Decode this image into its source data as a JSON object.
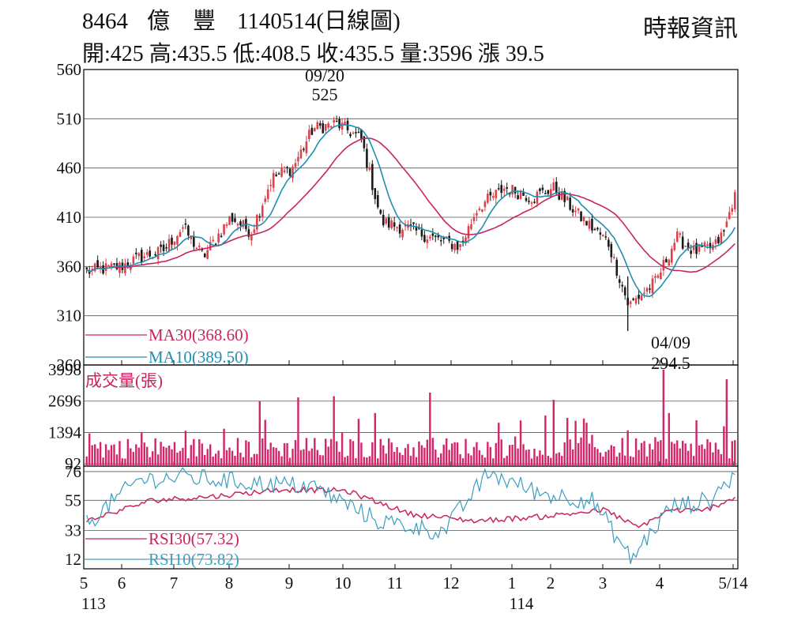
{
  "header": {
    "code": "8464",
    "name": "億　豐",
    "date_title": "1140514(日線圖)",
    "source": "時報資訊",
    "ohlc_line": "開:425 高:435.5 低:408.5 收:435.5 量:3596 漲 39.5"
  },
  "colors": {
    "up": "#e0404a",
    "down": "#1a1a1a",
    "ma30": "#c8245e",
    "ma10": "#1f8fb0",
    "volume": "#d4246a",
    "rsi30": "#c8245e",
    "rsi10": "#3a9fc0",
    "grid": "#555555"
  },
  "annotations": {
    "high_date": "09/20",
    "high_value": "525",
    "low_date": "04/09",
    "low_value": "294.5"
  },
  "chart_data": [
    {
      "type": "candlestick",
      "title": "",
      "ylim": [
        260,
        560
      ],
      "y_ticks": [
        "560",
        "510",
        "460",
        "410",
        "360",
        "310",
        "260"
      ],
      "x_ticks": [
        "5",
        "6",
        "7",
        "8",
        "9",
        "10",
        "11",
        "12",
        "1",
        "2",
        "3",
        "4",
        "5/14"
      ],
      "x_year_labels": [
        "113",
        "114"
      ],
      "grid": true,
      "legend": [
        "MA30(368.60)",
        "MA10(389.50)"
      ],
      "close_anchors": [
        {
          "x": 0.0,
          "close": 355
        },
        {
          "x": 0.05,
          "close": 360
        },
        {
          "x": 0.08,
          "close": 370
        },
        {
          "x": 0.11,
          "close": 375
        },
        {
          "x": 0.14,
          "close": 400
        },
        {
          "x": 0.17,
          "close": 370
        },
        {
          "x": 0.21,
          "close": 410
        },
        {
          "x": 0.24,
          "close": 395
        },
        {
          "x": 0.27,
          "close": 450
        },
        {
          "x": 0.3,
          "close": 460
        },
        {
          "x": 0.33,
          "close": 500
        },
        {
          "x": 0.365,
          "close": 505
        },
        {
          "x": 0.4,
          "close": 490
        },
        {
          "x": 0.43,
          "close": 405
        },
        {
          "x": 0.47,
          "close": 398
        },
        {
          "x": 0.5,
          "close": 390
        },
        {
          "x": 0.545,
          "close": 380
        },
        {
          "x": 0.57,
          "close": 420
        },
        {
          "x": 0.61,
          "close": 440
        },
        {
          "x": 0.65,
          "close": 430
        },
        {
          "x": 0.68,
          "close": 440
        },
        {
          "x": 0.72,
          "close": 410
        },
        {
          "x": 0.76,
          "close": 385
        },
        {
          "x": 0.79,
          "close": 320
        },
        {
          "x": 0.83,
          "close": 345
        },
        {
          "x": 0.86,
          "close": 390
        },
        {
          "x": 0.885,
          "close": 375
        },
        {
          "x": 0.915,
          "close": 380
        },
        {
          "x": 0.93,
          "close": 396
        },
        {
          "x": 0.945,
          "close": 435.5
        }
      ]
    },
    {
      "type": "bar",
      "title": "成交量(張)",
      "ylim": [
        0,
        3998
      ],
      "y_ticks": [
        "3998",
        "2696",
        "1394",
        "92"
      ],
      "grid": true,
      "spikes": [
        {
          "i": 5,
          "v": 1000
        },
        {
          "i": 20,
          "v": 1400
        },
        {
          "i": 50,
          "v": 1550
        },
        {
          "i": 63,
          "v": 2700
        },
        {
          "i": 77,
          "v": 2850
        },
        {
          "i": 90,
          "v": 2900
        },
        {
          "i": 105,
          "v": 2200
        },
        {
          "i": 125,
          "v": 3050
        },
        {
          "i": 150,
          "v": 1800
        },
        {
          "i": 167,
          "v": 2100
        },
        {
          "i": 170,
          "v": 2750
        },
        {
          "i": 175,
          "v": 2000
        },
        {
          "i": 210,
          "v": 3998
        },
        {
          "i": 212,
          "v": 2200
        },
        {
          "i": 222,
          "v": 1900
        },
        {
          "i": 233,
          "v": 3600
        }
      ]
    },
    {
      "type": "line",
      "title": "",
      "ylim": [
        5,
        80
      ],
      "y_ticks": [
        "76",
        "55",
        "33",
        "12"
      ],
      "grid": true,
      "legend": [
        "RSI30(57.32)",
        "RSI10(73.82)"
      ],
      "rsi30_anchors": [
        {
          "x": 0.0,
          "y": 40
        },
        {
          "x": 0.1,
          "y": 55
        },
        {
          "x": 0.2,
          "y": 58
        },
        {
          "x": 0.3,
          "y": 63
        },
        {
          "x": 0.4,
          "y": 62
        },
        {
          "x": 0.5,
          "y": 45
        },
        {
          "x": 0.6,
          "y": 40
        },
        {
          "x": 0.7,
          "y": 43
        },
        {
          "x": 0.8,
          "y": 48
        },
        {
          "x": 0.85,
          "y": 35
        },
        {
          "x": 0.9,
          "y": 48
        },
        {
          "x": 0.95,
          "y": 47
        },
        {
          "x": 1.0,
          "y": 57.32
        }
      ],
      "rsi10_anchors": [
        {
          "x": 0.0,
          "y": 38
        },
        {
          "x": 0.08,
          "y": 70
        },
        {
          "x": 0.15,
          "y": 72
        },
        {
          "x": 0.25,
          "y": 68
        },
        {
          "x": 0.35,
          "y": 65
        },
        {
          "x": 0.45,
          "y": 40
        },
        {
          "x": 0.55,
          "y": 32
        },
        {
          "x": 0.62,
          "y": 75
        },
        {
          "x": 0.7,
          "y": 60
        },
        {
          "x": 0.78,
          "y": 55
        },
        {
          "x": 0.84,
          "y": 12
        },
        {
          "x": 0.9,
          "y": 50
        },
        {
          "x": 0.96,
          "y": 55
        },
        {
          "x": 1.0,
          "y": 73.82
        }
      ]
    }
  ]
}
